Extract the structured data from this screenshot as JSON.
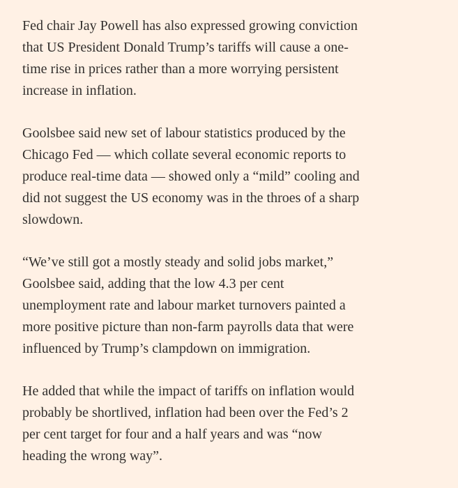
{
  "paragraphs": [
    {
      "lines": [
        "Fed chair Jay Powell has also expressed growing conviction",
        "that US President Donald Trump’s tariffs will cause a one-",
        "time rise in prices rather than a more worrying persistent",
        "increase in inflation."
      ]
    },
    {
      "lines": [
        "Goolsbee said new set of labour statistics produced by the",
        "Chicago Fed — which collate several economic reports to",
        "produce real-time data — showed only a “mild” cooling and",
        "did not suggest the US economy was in the throes of a sharp",
        "slowdown."
      ]
    },
    {
      "lines": [
        "“We’ve still got a mostly steady and solid jobs market,”",
        "Goolsbee said, adding that the low 4.3 per cent",
        "unemployment rate and labour market turnovers painted a",
        "more positive picture than non-farm payrolls data that were",
        "influenced by Trump’s clampdown on immigration."
      ]
    },
    {
      "lines": [
        "He added that while the impact of tariffs on inflation would",
        "probably be shortlived, inflation had been over the Fed’s 2",
        "per cent target for four and a half years and was “now",
        "heading the wrong way”."
      ]
    }
  ]
}
